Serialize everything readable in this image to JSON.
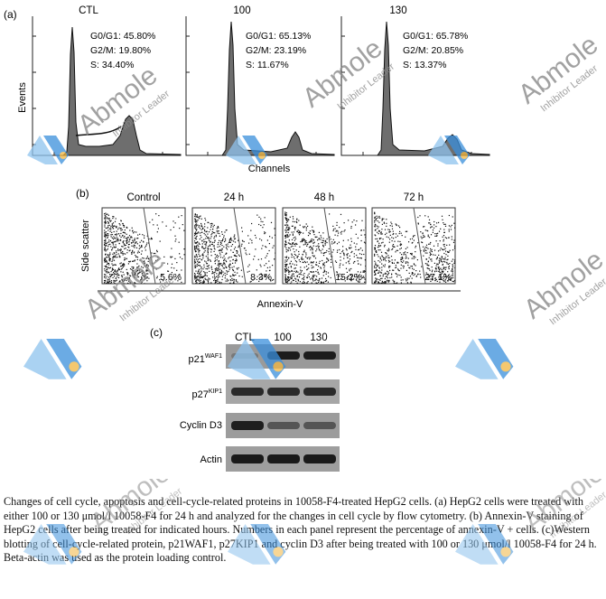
{
  "panel_a": {
    "label": "(a)",
    "y_axis_label": "Events",
    "x_axis_label": "Channels",
    "plots": [
      {
        "title": "CTL",
        "g0g1_label": "G0/G1",
        "g0g1_value": "45.80%",
        "g2m_label": "G2/M",
        "g2m_value": "19.80%",
        "s_label": "S",
        "s_value": "34.40%"
      },
      {
        "title": "100",
        "g0g1_label": "G0/G1",
        "g0g1_value": "65.13%",
        "g2m_label": "G2/M",
        "g2m_value": "23.19%",
        "s_label": "S",
        "s_value": "11.67%"
      },
      {
        "title": "130",
        "g0g1_label": "G0/G1",
        "g0g1_value": "65.78%",
        "g2m_label": "G2/M",
        "g2m_value": "20.85%",
        "s_label": "S",
        "s_value": "13.37%"
      }
    ]
  },
  "panel_b": {
    "label": "(b)",
    "y_axis_label": "Side scatter",
    "x_axis_label": "Annexin-V",
    "plots": [
      {
        "title": "Control",
        "value": "5.6%",
        "fraction": 0.056
      },
      {
        "title": "24 h",
        "value": "8.3%",
        "fraction": 0.083
      },
      {
        "title": "48 h",
        "value": "15.2%",
        "fraction": 0.152
      },
      {
        "title": "72 h",
        "value": "27.1%",
        "fraction": 0.271
      }
    ]
  },
  "panel_c": {
    "label": "(c)",
    "lanes": [
      "CTL",
      "100",
      "130"
    ],
    "proteins": [
      {
        "name": "p21",
        "sup": "WAF1"
      },
      {
        "name": "p27",
        "sup": "KIP1"
      },
      {
        "name": "Cyclin D3",
        "sup": ""
      },
      {
        "name": "Actin",
        "sup": ""
      }
    ]
  },
  "watermark": {
    "brand": "Abmole",
    "tagline": "Inhibitor Leader",
    "colors": {
      "blue_light": "#8ec3ee",
      "blue_dark": "#3a8fdc",
      "orange": "#f2b640",
      "text": "#8a8a8a"
    }
  },
  "caption": "Changes of cell cycle, apoptosis and cell-cycle-related proteins in 10058-F4-treated HepG2 cells. (a) HepG2 cells were treated with either 100 or 130 μmol/l 10058-F4 for 24 h and analyzed for the changes in cell cycle by flow cytometry. (b) Annexin-V staining of HepG2 cells after being treated for indicated hours. Numbers in each panel represent the percentage of annexin-V + cells. (c)Western blotting of cell-cycle-related protein, p21WAF1, p27KIP1 and cyclin D3 after being treated with 100 or 130 μmol/l 10058-F4 for 24 h. Beta-actin was used as the protein loading control."
}
